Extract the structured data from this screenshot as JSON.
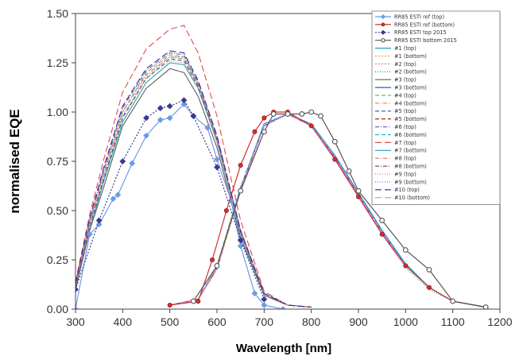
{
  "chart_data": {
    "type": "line",
    "xlabel": "Wavelength [nm]",
    "ylabel": "normalised EQE",
    "xlim": [
      300,
      1200
    ],
    "ylim": [
      0,
      1.5
    ],
    "x_ticks": [
      300,
      400,
      500,
      600,
      700,
      800,
      900,
      1000,
      1100,
      1200
    ],
    "y_ticks": [
      0.0,
      0.25,
      0.5,
      0.75,
      1.0,
      1.25,
      1.5
    ],
    "y_tick_labels": [
      "0.00",
      "0.25",
      "0.50",
      "0.75",
      "1.00",
      "1.25",
      "1.50"
    ],
    "grid": false,
    "legend_position": "right",
    "series": [
      {
        "name": "RR85 ESTI ref (top)",
        "color": "#6e9be8",
        "dash": "",
        "marker": "diamond",
        "x": [
          300,
          330,
          350,
          380,
          390,
          420,
          450,
          480,
          500,
          530,
          550,
          580,
          600,
          630,
          650,
          680,
          700,
          740
        ],
        "y": [
          0.0,
          0.38,
          0.43,
          0.56,
          0.58,
          0.74,
          0.88,
          0.96,
          0.97,
          1.04,
          0.98,
          0.92,
          0.76,
          0.55,
          0.32,
          0.08,
          0.02,
          0.0
        ]
      },
      {
        "name": "RR85 ESTI ref (bottom)",
        "color": "#d03030",
        "dash": "",
        "marker": "circle",
        "x": [
          500,
          560,
          590,
          620,
          650,
          680,
          700,
          720,
          750,
          800,
          850,
          900,
          950,
          1000,
          1050,
          1100,
          1170
        ],
        "y": [
          0.02,
          0.04,
          0.25,
          0.5,
          0.73,
          0.9,
          0.97,
          1.0,
          1.0,
          0.93,
          0.76,
          0.57,
          0.38,
          0.22,
          0.11,
          0.04,
          0.01
        ]
      },
      {
        "name": "RR85 ESTI top 2015",
        "color": "#3a3a90",
        "dash": "2 2",
        "marker": "diamond",
        "x": [
          300,
          350,
          400,
          450,
          480,
          500,
          530,
          550,
          600,
          650,
          700
        ],
        "y": [
          0.1,
          0.45,
          0.75,
          0.97,
          1.02,
          1.03,
          1.06,
          0.98,
          0.72,
          0.35,
          0.05
        ]
      },
      {
        "name": "RR85 ESTI bottom 2015",
        "color": "#555555",
        "dash": "",
        "marker": "open-circle",
        "x": [
          550,
          600,
          650,
          700,
          720,
          750,
          780,
          800,
          820,
          850,
          880,
          900,
          950,
          1000,
          1050,
          1100,
          1170
        ],
        "y": [
          0.04,
          0.22,
          0.6,
          0.9,
          0.99,
          0.99,
          0.99,
          1.0,
          0.98,
          0.85,
          0.7,
          0.6,
          0.45,
          0.3,
          0.2,
          0.04,
          0.01
        ]
      },
      {
        "name": "#1 (top)",
        "color": "#2aa6a6",
        "dash": "",
        "x": [
          300,
          330,
          360,
          400,
          450,
          500,
          530,
          560,
          600,
          650,
          700,
          750,
          800
        ],
        "y": [
          0.1,
          0.4,
          0.65,
          0.95,
          1.15,
          1.25,
          1.24,
          1.12,
          0.85,
          0.38,
          0.07,
          0.02,
          0.01
        ]
      },
      {
        "name": "#1 (bottom)",
        "color": "#e0a070",
        "dash": "2 2",
        "x": [
          500,
          560,
          600,
          650,
          700,
          750,
          800,
          850,
          900,
          950,
          1000,
          1050,
          1100,
          1170
        ],
        "y": [
          0.02,
          0.05,
          0.2,
          0.6,
          0.93,
          0.99,
          0.93,
          0.77,
          0.58,
          0.39,
          0.22,
          0.11,
          0.04,
          0.01
        ]
      },
      {
        "name": "#2 (top)",
        "color": "#e08a5a",
        "dash": "2 2",
        "x": [
          300,
          330,
          360,
          400,
          450,
          500,
          530,
          560,
          600,
          650,
          700,
          750,
          800
        ],
        "y": [
          0.12,
          0.42,
          0.68,
          0.98,
          1.18,
          1.28,
          1.28,
          1.15,
          0.88,
          0.4,
          0.08,
          0.02,
          0.01
        ]
      },
      {
        "name": "#2 (bottom)",
        "color": "#2a8a3a",
        "dash": "1 2",
        "x": [
          500,
          560,
          600,
          650,
          700,
          750,
          800,
          850,
          900,
          950,
          1000,
          1050,
          1100,
          1170
        ],
        "y": [
          0.02,
          0.05,
          0.22,
          0.62,
          0.94,
          0.99,
          0.93,
          0.76,
          0.57,
          0.38,
          0.21,
          0.1,
          0.04,
          0.01
        ]
      },
      {
        "name": "#3 (top)",
        "color": "#606060",
        "dash": "",
        "x": [
          300,
          330,
          360,
          400,
          450,
          500,
          530,
          560,
          600,
          650,
          700,
          750,
          800
        ],
        "y": [
          0.1,
          0.4,
          0.62,
          0.93,
          1.12,
          1.22,
          1.2,
          1.08,
          0.82,
          0.36,
          0.07,
          0.02,
          0.01
        ]
      },
      {
        "name": "#3 (bottom)",
        "color": "#3a5ab0",
        "dash": "",
        "x": [
          500,
          560,
          600,
          650,
          700,
          750,
          800,
          850,
          900,
          950,
          1000,
          1050,
          1100,
          1170
        ],
        "y": [
          0.02,
          0.05,
          0.21,
          0.61,
          0.94,
          0.99,
          0.94,
          0.78,
          0.59,
          0.4,
          0.23,
          0.11,
          0.04,
          0.01
        ]
      },
      {
        "name": "#4 (top)",
        "color": "#5ac05a",
        "dash": "5 3",
        "x": [
          300,
          330,
          360,
          400,
          450,
          500,
          530,
          560,
          600,
          650,
          700,
          750,
          800
        ],
        "y": [
          0.12,
          0.44,
          0.7,
          1.0,
          1.2,
          1.29,
          1.28,
          1.14,
          0.86,
          0.39,
          0.08,
          0.02,
          0.01
        ]
      },
      {
        "name": "#4 (bottom)",
        "color": "#f09030",
        "dash": "5 2 1 2",
        "x": [
          500,
          560,
          600,
          650,
          700,
          750,
          800,
          850,
          900,
          950,
          1000,
          1050,
          1100,
          1170
        ],
        "y": [
          0.02,
          0.05,
          0.2,
          0.6,
          0.93,
          0.99,
          0.93,
          0.77,
          0.58,
          0.39,
          0.22,
          0.11,
          0.04,
          0.01
        ]
      },
      {
        "name": "#5 (top)",
        "color": "#2a5a7a",
        "dash": "5 3",
        "x": [
          300,
          330,
          360,
          400,
          450,
          500,
          530,
          560,
          600,
          650,
          700,
          750,
          800
        ],
        "y": [
          0.11,
          0.42,
          0.66,
          0.97,
          1.17,
          1.27,
          1.26,
          1.13,
          0.86,
          0.39,
          0.08,
          0.02,
          0.01
        ]
      },
      {
        "name": "#5 (bottom)",
        "color": "#8a1a1a",
        "dash": "5 3",
        "x": [
          500,
          560,
          600,
          650,
          700,
          750,
          800,
          850,
          900,
          950,
          1000,
          1050,
          1100,
          1170
        ],
        "y": [
          0.02,
          0.05,
          0.21,
          0.61,
          0.93,
          0.99,
          0.93,
          0.77,
          0.58,
          0.39,
          0.22,
          0.11,
          0.04,
          0.01
        ]
      },
      {
        "name": "#6 (top)",
        "color": "#7a5ac0",
        "dash": "5 2 1 2",
        "x": [
          300,
          330,
          360,
          400,
          450,
          500,
          530,
          560,
          600,
          650,
          700,
          750,
          800
        ],
        "y": [
          0.13,
          0.45,
          0.71,
          1.02,
          1.21,
          1.3,
          1.29,
          1.15,
          0.87,
          0.4,
          0.08,
          0.02,
          0.01
        ]
      },
      {
        "name": "#6 (bottom)",
        "color": "#30b0c0",
        "dash": "5 3",
        "x": [
          500,
          560,
          600,
          650,
          700,
          750,
          800,
          850,
          900,
          950,
          1000,
          1050,
          1100,
          1170
        ],
        "y": [
          0.02,
          0.05,
          0.22,
          0.62,
          0.94,
          0.99,
          0.94,
          0.78,
          0.59,
          0.4,
          0.23,
          0.11,
          0.04,
          0.01
        ]
      },
      {
        "name": "#7 (top)",
        "color": "#e04a4a",
        "dash": "8 4",
        "x": [
          300,
          330,
          360,
          400,
          450,
          500,
          530,
          560,
          600,
          650,
          700,
          750,
          800
        ],
        "y": [
          0.14,
          0.48,
          0.76,
          1.1,
          1.32,
          1.42,
          1.44,
          1.3,
          0.98,
          0.45,
          0.09,
          0.02,
          0.01
        ]
      },
      {
        "name": "#7 (bottom)",
        "color": "#1aa0d0",
        "dash": "",
        "x": [
          500,
          560,
          600,
          650,
          700,
          750,
          800,
          850,
          900,
          950,
          1000,
          1050,
          1100,
          1170
        ],
        "y": [
          0.02,
          0.05,
          0.21,
          0.61,
          0.94,
          0.99,
          0.94,
          0.78,
          0.59,
          0.4,
          0.23,
          0.11,
          0.04,
          0.01
        ]
      },
      {
        "name": "#8 (top)",
        "color": "#e07070",
        "dash": "5 2 1 2",
        "x": [
          300,
          330,
          360,
          400,
          450,
          500,
          530,
          560,
          600,
          650,
          700,
          750,
          800
        ],
        "y": [
          0.12,
          0.44,
          0.69,
          1.0,
          1.19,
          1.28,
          1.27,
          1.14,
          0.86,
          0.39,
          0.08,
          0.02,
          0.01
        ]
      },
      {
        "name": "#8 (bottom)",
        "color": "#8a3a8a",
        "dash": "5 2 1 2",
        "x": [
          500,
          560,
          600,
          650,
          700,
          750,
          800,
          850,
          900,
          950,
          1000,
          1050,
          1100,
          1170
        ],
        "y": [
          0.02,
          0.05,
          0.21,
          0.61,
          0.93,
          0.99,
          0.93,
          0.77,
          0.58,
          0.39,
          0.22,
          0.11,
          0.04,
          0.01
        ]
      },
      {
        "name": "#9 (top)",
        "color": "#b07ab0",
        "dash": "1 2",
        "x": [
          300,
          330,
          360,
          400,
          450,
          500,
          530,
          560,
          600,
          650,
          700,
          750,
          800
        ],
        "y": [
          0.11,
          0.43,
          0.67,
          0.98,
          1.17,
          1.26,
          1.25,
          1.12,
          0.85,
          0.38,
          0.08,
          0.02,
          0.01
        ]
      },
      {
        "name": "#9 (bottom)",
        "color": "#c050e0",
        "dash": "1 2",
        "x": [
          500,
          560,
          600,
          650,
          700,
          750,
          800,
          850,
          900,
          950,
          1000,
          1050,
          1100,
          1170
        ],
        "y": [
          0.02,
          0.05,
          0.21,
          0.61,
          0.93,
          0.99,
          0.93,
          0.77,
          0.58,
          0.39,
          0.22,
          0.11,
          0.04,
          0.01
        ]
      },
      {
        "name": "#10 (top)",
        "color": "#2a2a9a",
        "dash": "8 4",
        "x": [
          300,
          330,
          360,
          400,
          450,
          500,
          530,
          560,
          600,
          650,
          700,
          750,
          800
        ],
        "y": [
          0.13,
          0.46,
          0.72,
          1.03,
          1.22,
          1.31,
          1.3,
          1.16,
          0.88,
          0.4,
          0.08,
          0.02,
          0.01
        ]
      },
      {
        "name": "#10 (bottom)",
        "color": "#e080e0",
        "dash": "8 4",
        "x": [
          500,
          560,
          600,
          650,
          700,
          750,
          800,
          850,
          900,
          950,
          1000,
          1050,
          1100,
          1170
        ],
        "y": [
          0.02,
          0.05,
          0.21,
          0.61,
          0.93,
          0.99,
          0.93,
          0.77,
          0.58,
          0.39,
          0.22,
          0.11,
          0.04,
          0.01
        ]
      }
    ]
  }
}
